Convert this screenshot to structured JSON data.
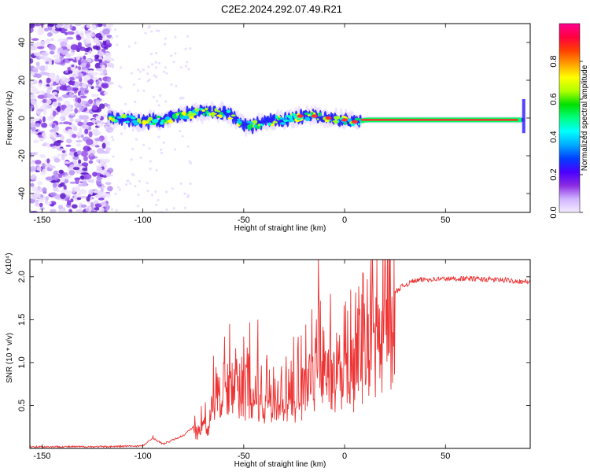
{
  "title": "C2E2.2024.292.07.49.R21",
  "chart_data": [
    {
      "type": "heatmap",
      "xlabel": "Height of straight line (km)",
      "ylabel": "Frequency (Hz)",
      "xlim": [
        -156,
        92
      ],
      "ylim": [
        -50,
        50
      ],
      "xticks": [
        -150,
        -100,
        -50,
        0,
        50
      ],
      "xtick_labels": [
        "-150",
        "-100",
        "-50",
        "0",
        "50"
      ],
      "yticks": [
        -40,
        -20,
        0,
        20,
        40
      ],
      "ytick_labels": [
        "-40",
        "-20",
        "0",
        "20",
        "40"
      ],
      "colorbar": {
        "label": "Normalized spectral amplitude",
        "range": [
          0,
          1
        ],
        "ticks": [
          0.0,
          0.2,
          0.4,
          0.6,
          0.8
        ],
        "tick_labels": [
          "0.0",
          "0.2",
          "0.4",
          "0.6",
          "0.8"
        ],
        "colors": [
          "#f4ecff",
          "#d0b4ff",
          "#8a2be2",
          "#4b00ff",
          "#0040ff",
          "#00aaff",
          "#00ffff",
          "#00ff80",
          "#00e000",
          "#b0ff00",
          "#ffff00",
          "#ffa000",
          "#ff4000",
          "#ff0040",
          "#ff0090"
        ]
      },
      "ridge": [
        {
          "x": -117,
          "y": 0
        },
        {
          "x": -110,
          "y": 0
        },
        {
          "x": -100,
          "y": -2
        },
        {
          "x": -90,
          "y": -1
        },
        {
          "x": -80,
          "y": 2
        },
        {
          "x": -70,
          "y": 3
        },
        {
          "x": -62,
          "y": 3
        },
        {
          "x": -55,
          "y": 1
        },
        {
          "x": -50,
          "y": -4
        },
        {
          "x": -45,
          "y": -4
        },
        {
          "x": -40,
          "y": -2
        },
        {
          "x": -30,
          "y": -1
        },
        {
          "x": -22,
          "y": 1
        },
        {
          "x": -15,
          "y": 1
        },
        {
          "x": -8,
          "y": 0
        },
        {
          "x": 0,
          "y": -1
        },
        {
          "x": 5,
          "y": -2
        },
        {
          "x": 10,
          "y": -1
        },
        {
          "x": 20,
          "y": -1
        },
        {
          "x": 40,
          "y": -1
        },
        {
          "x": 60,
          "y": -1
        },
        {
          "x": 80,
          "y": -1
        },
        {
          "x": 88,
          "y": -1
        }
      ]
    },
    {
      "type": "line",
      "xlabel": "Height of straight line (km)",
      "ylabel": "SNR (10 * v/v)",
      "y_multiplier_label": "(x10⁴)",
      "xlim": [
        -156,
        92
      ],
      "ylim": [
        0,
        2.2
      ],
      "xticks": [
        -150,
        -100,
        -50,
        0,
        50
      ],
      "xtick_labels": [
        "-150",
        "-100",
        "-50",
        "0",
        "50"
      ],
      "yticks": [
        0.5,
        1.0,
        1.5,
        2.0
      ],
      "ytick_labels": [
        "0.5",
        "1.0",
        "1.5",
        "2.0"
      ],
      "color": "#ee3333",
      "envelope": [
        {
          "x": -156,
          "y": 0.02
        },
        {
          "x": -120,
          "y": 0.02
        },
        {
          "x": -100,
          "y": 0.03
        },
        {
          "x": -95,
          "y": 0.12
        },
        {
          "x": -90,
          "y": 0.05
        },
        {
          "x": -80,
          "y": 0.15
        },
        {
          "x": -70,
          "y": 0.35
        },
        {
          "x": -65,
          "y": 0.55
        },
        {
          "x": -60,
          "y": 0.8
        },
        {
          "x": -57,
          "y": 1.05
        },
        {
          "x": -50,
          "y": 0.9
        },
        {
          "x": -45,
          "y": 0.7
        },
        {
          "x": -40,
          "y": 0.75
        },
        {
          "x": -35,
          "y": 0.65
        },
        {
          "x": -28,
          "y": 0.8
        },
        {
          "x": -22,
          "y": 0.9
        },
        {
          "x": -15,
          "y": 1.1
        },
        {
          "x": -12,
          "y": 1.55
        },
        {
          "x": -8,
          "y": 1.2
        },
        {
          "x": -4,
          "y": 1.05
        },
        {
          "x": 0,
          "y": 1.1
        },
        {
          "x": 6,
          "y": 1.2
        },
        {
          "x": 10,
          "y": 1.4
        },
        {
          "x": 16,
          "y": 1.6
        },
        {
          "x": 22,
          "y": 1.75
        },
        {
          "x": 28,
          "y": 1.88
        },
        {
          "x": 34,
          "y": 1.95
        },
        {
          "x": 40,
          "y": 1.97
        },
        {
          "x": 60,
          "y": 1.98
        },
        {
          "x": 80,
          "y": 1.96
        },
        {
          "x": 92,
          "y": 1.94
        }
      ],
      "spikes": [
        {
          "x": -95,
          "y": 0.15
        },
        {
          "x": -65,
          "y": 1.08
        },
        {
          "x": -57,
          "y": 1.45
        },
        {
          "x": -47,
          "y": 1.47
        },
        {
          "x": -43,
          "y": 1.5
        },
        {
          "x": -23,
          "y": 1.3
        },
        {
          "x": -13,
          "y": 2.22
        },
        {
          "x": -7,
          "y": 1.8
        },
        {
          "x": 3,
          "y": 1.85
        },
        {
          "x": 9,
          "y": 2.05
        },
        {
          "x": 14,
          "y": 1.9
        }
      ]
    }
  ]
}
